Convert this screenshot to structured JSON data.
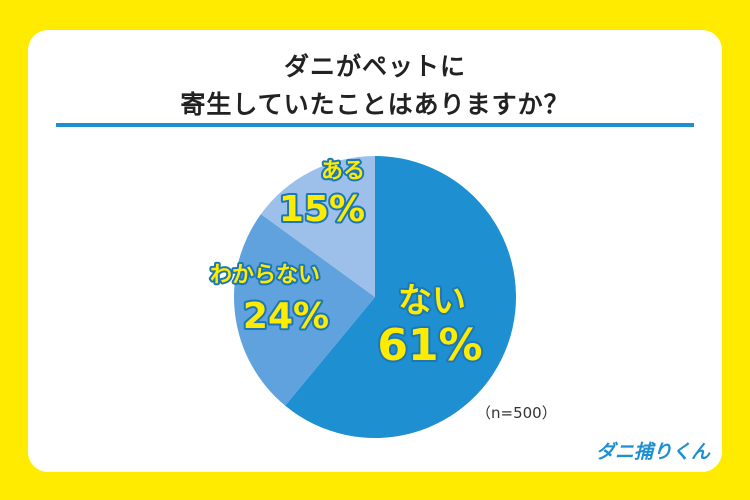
{
  "title_line1": "ダニがペットに",
  "title_line2": "寄生していたことはありますか？",
  "sample_note": "（n=500）",
  "brand": "ダニ捕りくん",
  "chart_data": {
    "type": "pie",
    "title": "ダニがペットに寄生していたことはありますか？",
    "slices": [
      {
        "label": "ない",
        "value": 61,
        "value_text": "61%",
        "color": "#1E8FD0"
      },
      {
        "label": "わからない",
        "value": 24,
        "value_text": "24%",
        "color": "#5FA2DE"
      },
      {
        "label": "ある",
        "value": 15,
        "value_text": "15%",
        "color": "#9CC0EA"
      }
    ],
    "start": "12 o'clock",
    "direction": "clockwise",
    "label_color": "#FFEB00",
    "label_outline": "#1A78B8"
  }
}
